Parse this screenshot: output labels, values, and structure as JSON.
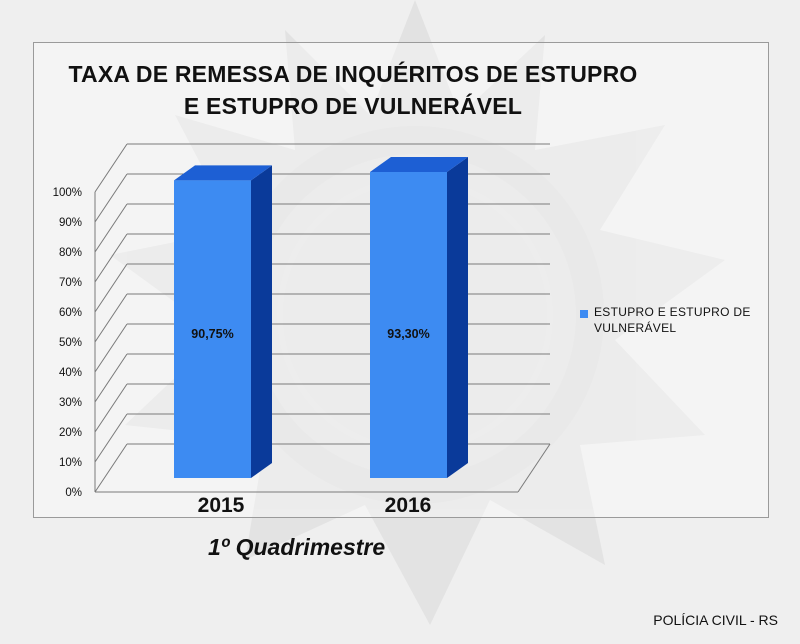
{
  "chart_data": {
    "type": "bar",
    "title": "TAXA DE REMESSA DE INQUÉRITOS DE ESTUPRO\nE ESTUPRO DE VULNERÁVEL",
    "categories": [
      "2015",
      "2016"
    ],
    "series": [
      {
        "name": "ESTUPRO E ESTUPRO DE VULNERÁVEL",
        "values": [
          90.75,
          93.3
        ]
      }
    ],
    "data_labels": [
      "90,75%",
      "93,30%"
    ],
    "y_ticks": [
      "0%",
      "10%",
      "20%",
      "30%",
      "40%",
      "50%",
      "60%",
      "70%",
      "80%",
      "90%",
      "100%"
    ],
    "ylim": [
      0,
      100
    ],
    "y_unit": "%",
    "style": "3d-column",
    "grid": true,
    "legend_position": "right",
    "bar_color": "#3d8bf2",
    "bar_side_color": "#0a3a9a",
    "bar_top_color": "#1d5fd4"
  },
  "subtitle": "1º Quadrimestre",
  "footer": "POLÍCIA CIVIL - RS"
}
